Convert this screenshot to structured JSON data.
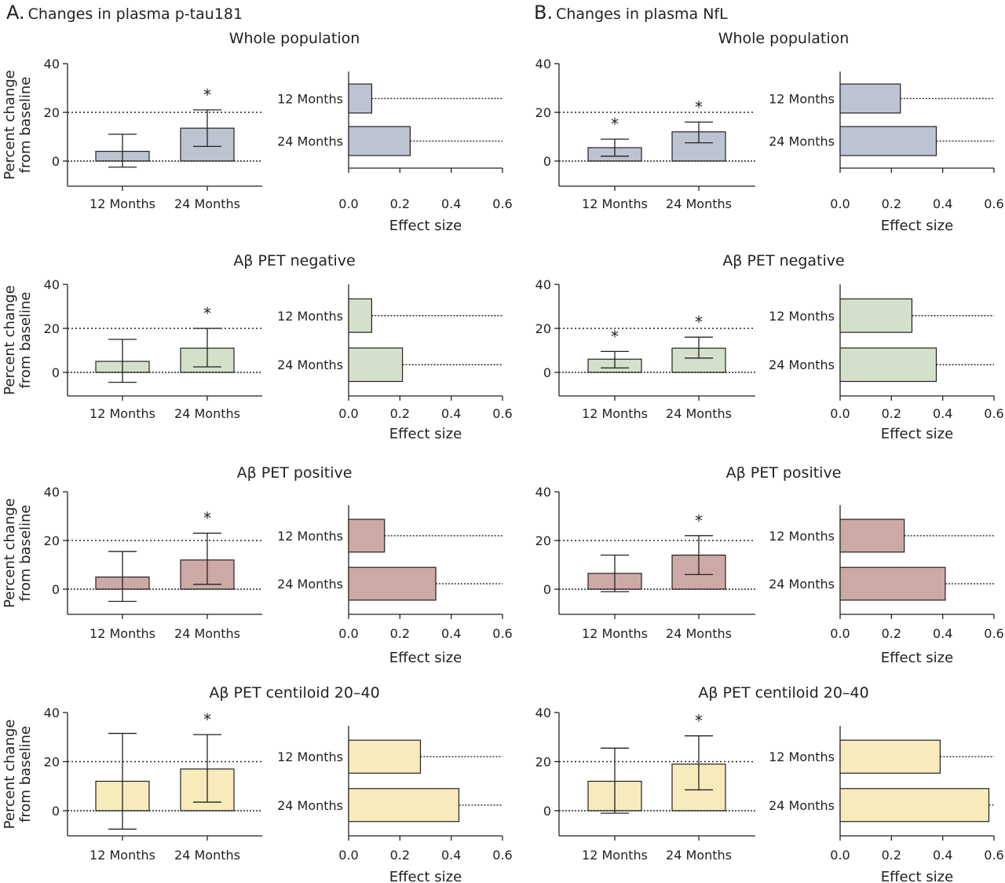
{
  "panels": [
    {
      "id": "A",
      "letter": "A.",
      "title": "Changes in plasma p-tau181"
    },
    {
      "id": "B",
      "letter": "B.",
      "title": "Changes in plasma NfL"
    }
  ],
  "colors": {
    "whole": "#bdc3d1",
    "neg": "#d5e0cb",
    "pos": "#cda9a5",
    "cent": "#f7ebbb",
    "stroke": "#222222"
  },
  "chart_data": [
    {
      "panel": "A",
      "group": "Whole population",
      "type": "bar",
      "ylabel": "Percent change from baseline",
      "ylim": [
        -10,
        40
      ],
      "yticks": [
        0,
        20,
        40
      ],
      "reference_line": 20,
      "color": "whole",
      "categories": [
        "12 Months",
        "24 Months"
      ],
      "values": [
        4,
        13.5
      ],
      "err_low": [
        -2.5,
        6
      ],
      "err_high": [
        11,
        21
      ],
      "significant": [
        false,
        true
      ],
      "effect": {
        "xlabel": "Effect size",
        "xlim": [
          0,
          0.6
        ],
        "xticks": [
          "0.0",
          "0.2",
          "0.4",
          "0.6"
        ],
        "categories": [
          "12 Months",
          "24 Months"
        ],
        "values": [
          0.09,
          0.24
        ]
      }
    },
    {
      "panel": "A",
      "group": "Aβ PET negative",
      "type": "bar",
      "ylabel": "Percent change from baseline",
      "ylim": [
        -10,
        40
      ],
      "yticks": [
        0,
        20,
        40
      ],
      "reference_line": 20,
      "color": "neg",
      "categories": [
        "12 Months",
        "24 Months"
      ],
      "values": [
        5,
        11
      ],
      "err_low": [
        -4.5,
        2.5
      ],
      "err_high": [
        15,
        20
      ],
      "significant": [
        false,
        true
      ],
      "effect": {
        "xlabel": "Effect size",
        "xlim": [
          0,
          0.6
        ],
        "xticks": [
          "0.0",
          "0.2",
          "0.4",
          "0.6"
        ],
        "categories": [
          "12 Months",
          "24 Months"
        ],
        "values": [
          0.09,
          0.21
        ]
      }
    },
    {
      "panel": "A",
      "group": "Aβ PET positive",
      "type": "bar",
      "ylabel": "Percent change from baseline",
      "ylim": [
        -10,
        40
      ],
      "yticks": [
        0,
        20,
        40
      ],
      "reference_line": 20,
      "color": "pos",
      "categories": [
        "12 Months",
        "24 Months"
      ],
      "values": [
        5,
        12
      ],
      "err_low": [
        -5,
        2
      ],
      "err_high": [
        15.5,
        23
      ],
      "significant": [
        false,
        true
      ],
      "effect": {
        "xlabel": "Effect size",
        "xlim": [
          0,
          0.6
        ],
        "xticks": [
          "0.0",
          "0.2",
          "0.4",
          "0.6"
        ],
        "categories": [
          "12 Months",
          "24 Months"
        ],
        "values": [
          0.14,
          0.34
        ]
      }
    },
    {
      "panel": "A",
      "group": "Aβ PET centiloid 20–40",
      "type": "bar",
      "ylabel": "Percent change from baseline",
      "ylim": [
        -10,
        40
      ],
      "yticks": [
        0,
        20,
        40
      ],
      "reference_line": 20,
      "color": "cent",
      "categories": [
        "12 Months",
        "24 Months"
      ],
      "values": [
        12,
        17
      ],
      "err_low": [
        -7.5,
        3.5
      ],
      "err_high": [
        31.5,
        31
      ],
      "significant": [
        false,
        true
      ],
      "effect": {
        "xlabel": "Effect size",
        "xlim": [
          0,
          0.6
        ],
        "xticks": [
          "0.0",
          "0.2",
          "0.4",
          "0.6"
        ],
        "categories": [
          "12 Months",
          "24 Months"
        ],
        "values": [
          0.28,
          0.43
        ]
      }
    },
    {
      "panel": "B",
      "group": "Whole population",
      "type": "bar",
      "ylabel": "",
      "ylim": [
        -10,
        40
      ],
      "yticks": [
        0,
        20,
        40
      ],
      "reference_line": 20,
      "color": "whole",
      "categories": [
        "12 Months",
        "24 Months"
      ],
      "values": [
        5.5,
        12
      ],
      "err_low": [
        2,
        7.5
      ],
      "err_high": [
        9,
        16
      ],
      "significant": [
        true,
        true
      ],
      "effect": {
        "xlabel": "Effect size",
        "xlim": [
          0,
          0.6
        ],
        "xticks": [
          "0.0",
          "0.2",
          "0.4",
          "0.6"
        ],
        "categories": [
          "12 Months",
          "24 Months"
        ],
        "values": [
          0.235,
          0.375
        ]
      }
    },
    {
      "panel": "B",
      "group": "Aβ PET negative",
      "type": "bar",
      "ylabel": "",
      "ylim": [
        -10,
        40
      ],
      "yticks": [
        0,
        20,
        40
      ],
      "reference_line": 20,
      "color": "neg",
      "categories": [
        "12 Months",
        "24 Months"
      ],
      "values": [
        6,
        11
      ],
      "err_low": [
        2,
        6.5
      ],
      "err_high": [
        9.5,
        16
      ],
      "significant": [
        true,
        true
      ],
      "effect": {
        "xlabel": "Effect size",
        "xlim": [
          0,
          0.6
        ],
        "xticks": [
          "0.0",
          "0.2",
          "0.4",
          "0.6"
        ],
        "categories": [
          "12 Months",
          "24 Months"
        ],
        "values": [
          0.28,
          0.375
        ]
      }
    },
    {
      "panel": "B",
      "group": "Aβ PET positive",
      "type": "bar",
      "ylabel": "",
      "ylim": [
        -10,
        40
      ],
      "yticks": [
        0,
        20,
        40
      ],
      "reference_line": 20,
      "color": "pos",
      "categories": [
        "12 Months",
        "24 Months"
      ],
      "values": [
        6.5,
        14
      ],
      "err_low": [
        -1,
        6
      ],
      "err_high": [
        14,
        22
      ],
      "significant": [
        false,
        true
      ],
      "effect": {
        "xlabel": "Effect size",
        "xlim": [
          0,
          0.6
        ],
        "xticks": [
          "0.0",
          "0.2",
          "0.4",
          "0.6"
        ],
        "categories": [
          "12 Months",
          "24 Months"
        ],
        "values": [
          0.25,
          0.41
        ]
      }
    },
    {
      "panel": "B",
      "group": "Aβ PET centiloid 20–40",
      "type": "bar",
      "ylabel": "",
      "ylim": [
        -10,
        40
      ],
      "yticks": [
        0,
        20,
        40
      ],
      "reference_line": 20,
      "color": "cent",
      "categories": [
        "12 Months",
        "24 Months"
      ],
      "values": [
        12,
        19
      ],
      "err_low": [
        -1,
        8.5
      ],
      "err_high": [
        25.5,
        30.5
      ],
      "significant": [
        false,
        true
      ],
      "effect": {
        "xlabel": "Effect size",
        "xlim": [
          0,
          0.6
        ],
        "xticks": [
          "0.0",
          "0.2",
          "0.4",
          "0.6"
        ],
        "categories": [
          "12 Months",
          "24 Months"
        ],
        "values": [
          0.39,
          0.58
        ]
      }
    }
  ]
}
